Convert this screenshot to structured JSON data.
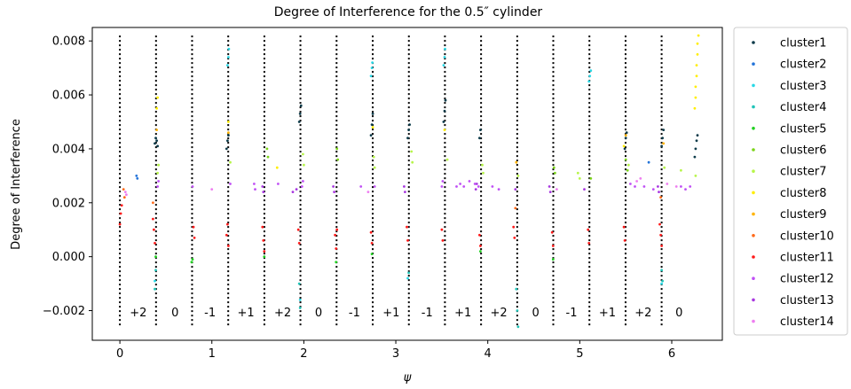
{
  "chart_data": {
    "type": "scatter",
    "title": "Degree of Interference for the 0.5″ cylinder",
    "xlabel": "ψ",
    "ylabel": "Degree of Interference",
    "xlim": [
      -0.3,
      6.55
    ],
    "ylim": [
      -0.0031,
      0.0085
    ],
    "xticks": [
      {
        "value": 0,
        "label": "0"
      },
      {
        "value": 1,
        "label": "1"
      },
      {
        "value": 2,
        "label": "2"
      },
      {
        "value": 3,
        "label": "3"
      },
      {
        "value": 4,
        "label": "4"
      },
      {
        "value": 5,
        "label": "5"
      },
      {
        "value": 6,
        "label": "6"
      }
    ],
    "yticks": [
      {
        "value": -0.002,
        "label": "−0.002"
      },
      {
        "value": 0.0,
        "label": "0.000"
      },
      {
        "value": 0.002,
        "label": "0.002"
      },
      {
        "value": 0.004,
        "label": "0.004"
      },
      {
        "value": 0.006,
        "label": "0.006"
      },
      {
        "value": 0.008,
        "label": "0.008"
      }
    ],
    "grid": false,
    "legend_position": "outside-right",
    "boundary_lines": {
      "style": "dotted",
      "color": "#000000",
      "y_range": [
        -0.0026,
        0.0082
      ],
      "x": [
        0.0,
        0.393,
        0.785,
        1.178,
        1.571,
        1.963,
        2.356,
        2.749,
        3.142,
        3.534,
        3.927,
        4.32,
        4.712,
        5.105,
        5.498,
        5.89
      ]
    },
    "region_labels": {
      "y": -0.00205,
      "items": [
        {
          "x": 0.2,
          "label": "+2"
        },
        {
          "x": 0.6,
          "label": "0"
        },
        {
          "x": 0.98,
          "label": "-1"
        },
        {
          "x": 1.37,
          "label": "+1"
        },
        {
          "x": 1.77,
          "label": "+2"
        },
        {
          "x": 2.16,
          "label": "0"
        },
        {
          "x": 2.55,
          "label": "-1"
        },
        {
          "x": 2.95,
          "label": "+1"
        },
        {
          "x": 3.34,
          "label": "-1"
        },
        {
          "x": 3.73,
          "label": "+1"
        },
        {
          "x": 4.12,
          "label": "+2"
        },
        {
          "x": 4.52,
          "label": "0"
        },
        {
          "x": 4.91,
          "label": "-1"
        },
        {
          "x": 5.3,
          "label": "+1"
        },
        {
          "x": 5.69,
          "label": "+2"
        },
        {
          "x": 6.08,
          "label": "0"
        }
      ]
    },
    "series": [
      {
        "name": "cluster1",
        "color": "#0d3b4a",
        "points": [
          [
            0.38,
            0.0042
          ],
          [
            0.39,
            0.0044
          ],
          [
            0.4,
            0.0043
          ],
          [
            0.41,
            0.0041
          ],
          [
            1.16,
            0.004
          ],
          [
            1.17,
            0.0043
          ],
          [
            1.18,
            0.0045
          ],
          [
            1.95,
            0.005
          ],
          [
            1.96,
            0.0053
          ],
          [
            1.97,
            0.0056
          ],
          [
            2.73,
            0.0045
          ],
          [
            2.74,
            0.0049
          ],
          [
            2.75,
            0.0053
          ],
          [
            3.13,
            0.0044
          ],
          [
            3.14,
            0.0047
          ],
          [
            3.15,
            0.0049
          ],
          [
            3.52,
            0.005
          ],
          [
            3.53,
            0.0054
          ],
          [
            3.54,
            0.0058
          ],
          [
            3.91,
            0.0044
          ],
          [
            3.92,
            0.0047
          ],
          [
            5.49,
            0.004
          ],
          [
            5.5,
            0.0044
          ],
          [
            5.51,
            0.0046
          ],
          [
            5.89,
            0.0041
          ],
          [
            5.9,
            0.0044
          ],
          [
            5.91,
            0.0047
          ],
          [
            6.25,
            0.0037
          ],
          [
            6.26,
            0.004
          ],
          [
            6.27,
            0.0043
          ],
          [
            6.28,
            0.0045
          ]
        ]
      },
      {
        "name": "cluster2",
        "color": "#2474d9",
        "points": [
          [
            0.18,
            0.003
          ],
          [
            0.19,
            0.0029
          ],
          [
            5.75,
            0.0035
          ]
        ]
      },
      {
        "name": "cluster3",
        "color": "#29d8e6",
        "points": [
          [
            1.17,
            0.0071
          ],
          [
            1.18,
            0.0074
          ],
          [
            1.185,
            0.0077
          ],
          [
            2.73,
            0.0067
          ],
          [
            2.74,
            0.007
          ],
          [
            2.745,
            0.0072
          ],
          [
            3.52,
            0.0071
          ],
          [
            3.53,
            0.0074
          ],
          [
            3.535,
            0.0077
          ],
          [
            5.1,
            0.0065
          ],
          [
            5.11,
            0.0067
          ],
          [
            5.12,
            0.0069
          ],
          [
            0.38,
            -0.0009
          ],
          [
            3.13,
            -0.0008
          ],
          [
            5.89,
            -0.001
          ],
          [
            1.96,
            -0.0016
          ]
        ]
      },
      {
        "name": "cluster4",
        "color": "#20c4b8",
        "points": [
          [
            0.39,
            -0.0005
          ],
          [
            0.38,
            -0.0012
          ],
          [
            1.95,
            -0.001
          ],
          [
            1.96,
            -0.0019
          ],
          [
            3.14,
            -0.0006
          ],
          [
            4.31,
            -0.0012
          ],
          [
            4.32,
            -0.002
          ],
          [
            4.33,
            -0.0026
          ],
          [
            5.89,
            -0.0005
          ],
          [
            5.9,
            -0.0009
          ]
        ]
      },
      {
        "name": "cluster5",
        "color": "#22d022",
        "points": [
          [
            0.78,
            -0.0002
          ],
          [
            0.79,
            -0.0001
          ],
          [
            1.57,
            0.0
          ],
          [
            2.35,
            -0.0002
          ],
          [
            4.71,
            -0.0001
          ],
          [
            0.39,
            0.0
          ],
          [
            3.92,
            0.0002
          ],
          [
            2.74,
            0.0001
          ]
        ]
      },
      {
        "name": "cluster6",
        "color": "#7cd41a",
        "points": [
          [
            1.6,
            0.004
          ],
          [
            1.61,
            0.0037
          ],
          [
            2.36,
            0.004
          ],
          [
            2.37,
            0.0036
          ],
          [
            4.72,
            0.0033
          ],
          [
            4.73,
            0.0031
          ],
          [
            5.5,
            0.0036
          ],
          [
            5.52,
            0.0032
          ],
          [
            5.12,
            0.0029
          ]
        ]
      },
      {
        "name": "cluster7",
        "color": "#b7f54a",
        "points": [
          [
            0.42,
            0.0034
          ],
          [
            0.41,
            0.0031
          ],
          [
            1.2,
            0.0035
          ],
          [
            1.99,
            0.0038
          ],
          [
            2.0,
            0.0034
          ],
          [
            2.76,
            0.0037
          ],
          [
            2.77,
            0.0033
          ],
          [
            3.17,
            0.0039
          ],
          [
            3.18,
            0.0035
          ],
          [
            3.56,
            0.0036
          ],
          [
            3.94,
            0.0034
          ],
          [
            3.95,
            0.0031
          ],
          [
            4.33,
            0.003
          ],
          [
            4.98,
            0.0031
          ],
          [
            5.0,
            0.0029
          ],
          [
            5.53,
            0.0034
          ],
          [
            5.92,
            0.0033
          ],
          [
            6.1,
            0.0032
          ],
          [
            6.26,
            0.003
          ]
        ]
      },
      {
        "name": "cluster8",
        "color": "#ffee00",
        "points": [
          [
            6.25,
            0.0055
          ],
          [
            6.26,
            0.0059
          ],
          [
            6.26,
            0.0063
          ],
          [
            6.27,
            0.0067
          ],
          [
            6.27,
            0.0071
          ],
          [
            6.28,
            0.0075
          ],
          [
            6.28,
            0.0079
          ],
          [
            6.29,
            0.0082
          ],
          [
            0.4,
            0.0055
          ],
          [
            0.41,
            0.0059
          ],
          [
            1.18,
            0.005
          ],
          [
            2.75,
            0.0048
          ],
          [
            3.53,
            0.0047
          ],
          [
            5.48,
            0.0041
          ],
          [
            1.71,
            0.0033
          ]
        ]
      },
      {
        "name": "cluster9",
        "color": "#ffb300",
        "points": [
          [
            0.4,
            0.0047
          ],
          [
            1.18,
            0.0046
          ],
          [
            5.5,
            0.0045
          ],
          [
            5.91,
            0.0042
          ],
          [
            4.31,
            0.0035
          ]
        ]
      },
      {
        "name": "cluster10",
        "color": "#ff6a1a",
        "points": [
          [
            0.04,
            0.0025
          ],
          [
            0.05,
            0.0022
          ],
          [
            5.88,
            0.0022
          ],
          [
            0.36,
            0.002
          ],
          [
            4.3,
            0.0018
          ]
        ]
      },
      {
        "name": "cluster11",
        "color": "#ff1a1a",
        "points": [
          [
            0.0,
            0.0012
          ],
          [
            0.01,
            0.0016
          ],
          [
            0.02,
            0.0019
          ],
          [
            0.37,
            0.001
          ],
          [
            0.38,
            0.0005
          ],
          [
            0.36,
            0.0014
          ],
          [
            0.8,
            0.0011
          ],
          [
            0.81,
            0.0007
          ],
          [
            1.17,
            0.0012
          ],
          [
            1.16,
            0.0008
          ],
          [
            1.18,
            0.0004
          ],
          [
            1.55,
            0.0011
          ],
          [
            1.56,
            0.0006
          ],
          [
            1.57,
            0.0002
          ],
          [
            1.94,
            0.001
          ],
          [
            1.95,
            0.0005
          ],
          [
            2.34,
            0.0008
          ],
          [
            2.35,
            0.0003
          ],
          [
            2.36,
            0.001
          ],
          [
            2.73,
            0.0009
          ],
          [
            2.74,
            0.0005
          ],
          [
            3.12,
            0.0011
          ],
          [
            3.13,
            0.0006
          ],
          [
            3.5,
            0.001
          ],
          [
            3.51,
            0.0006
          ],
          [
            3.91,
            0.0008
          ],
          [
            3.92,
            0.0004
          ],
          [
            4.28,
            0.0011
          ],
          [
            4.29,
            0.0007
          ],
          [
            4.7,
            0.0009
          ],
          [
            4.71,
            0.0004
          ],
          [
            5.09,
            0.001
          ],
          [
            5.1,
            0.0005
          ],
          [
            5.48,
            0.0011
          ],
          [
            5.49,
            0.0006
          ],
          [
            5.87,
            0.0012
          ],
          [
            5.88,
            0.0008
          ],
          [
            5.89,
            0.0004
          ]
        ]
      },
      {
        "name": "cluster12",
        "color": "#c050f5",
        "points": [
          [
            0.41,
            0.0026
          ],
          [
            0.42,
            0.0028
          ],
          [
            0.79,
            0.0026
          ],
          [
            1.2,
            0.0027
          ],
          [
            1.46,
            0.0027
          ],
          [
            1.47,
            0.0025
          ],
          [
            1.98,
            0.0026
          ],
          [
            1.99,
            0.0028
          ],
          [
            2.77,
            0.0026
          ],
          [
            3.5,
            0.0026
          ],
          [
            3.51,
            0.0028
          ],
          [
            3.66,
            0.0026
          ],
          [
            3.7,
            0.0027
          ],
          [
            3.74,
            0.0026
          ],
          [
            3.8,
            0.0028
          ],
          [
            3.86,
            0.0027
          ],
          [
            3.9,
            0.0026
          ],
          [
            4.05,
            0.0026
          ],
          [
            4.12,
            0.0025
          ],
          [
            5.55,
            0.0027
          ],
          [
            5.6,
            0.0026
          ],
          [
            5.7,
            0.0026
          ],
          [
            5.8,
            0.0025
          ],
          [
            6.1,
            0.0026
          ],
          [
            6.15,
            0.0025
          ],
          [
            6.2,
            0.0026
          ],
          [
            1.72,
            0.0027
          ],
          [
            2.62,
            0.0026
          ]
        ]
      },
      {
        "name": "cluster13",
        "color": "#a838e0",
        "points": [
          [
            1.55,
            0.0026
          ],
          [
            1.56,
            0.0024
          ],
          [
            1.92,
            0.0025
          ],
          [
            2.32,
            0.0026
          ],
          [
            2.33,
            0.0024
          ],
          [
            3.09,
            0.0026
          ],
          [
            3.1,
            0.0024
          ],
          [
            3.87,
            0.0025
          ],
          [
            3.88,
            0.0027
          ],
          [
            4.67,
            0.0026
          ],
          [
            4.68,
            0.0024
          ],
          [
            5.05,
            0.0025
          ],
          [
            5.85,
            0.0026
          ],
          [
            5.86,
            0.0024
          ],
          [
            4.3,
            0.0025
          ],
          [
            1.88,
            0.0024
          ]
        ]
      },
      {
        "name": "cluster14",
        "color": "#ee7ef0",
        "points": [
          [
            0.06,
            0.0024
          ],
          [
            0.07,
            0.0023
          ],
          [
            1.0,
            0.0025
          ],
          [
            2.7,
            0.0024
          ],
          [
            4.75,
            0.0025
          ],
          [
            5.62,
            0.0028
          ],
          [
            5.66,
            0.0029
          ],
          [
            5.95,
            0.0027
          ],
          [
            6.05,
            0.0026
          ]
        ]
      }
    ]
  }
}
